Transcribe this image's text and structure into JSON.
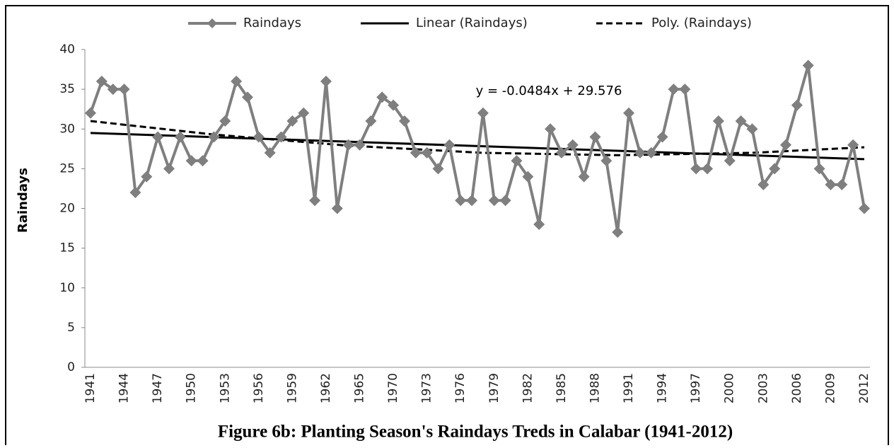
{
  "chart_data": {
    "type": "line",
    "title": "Figure 6b: Planting Season's Raindays Treds in Calabar (1941-2012)",
    "y_label": "Raindays",
    "categories": [
      "1941",
      null,
      null,
      "1944",
      null,
      null,
      "1947",
      null,
      null,
      "1950",
      null,
      null,
      "1953",
      null,
      null,
      "1956",
      null,
      null,
      "1959",
      null,
      null,
      "1962",
      null,
      null,
      "1965",
      null,
      null,
      "1970",
      null,
      null,
      "1973",
      null,
      null,
      "1976",
      null,
      null,
      "1979",
      null,
      null,
      "1982",
      null,
      null,
      "1985",
      null,
      null,
      "1988",
      null,
      null,
      "1991",
      null,
      null,
      "1994",
      null,
      null,
      "1997",
      null,
      null,
      "2000",
      null,
      null,
      "2003",
      null,
      null,
      "2006",
      null,
      null,
      "2009",
      null,
      null,
      "2012"
    ],
    "series": [
      {
        "name": "Raindays",
        "color": "#7f7f7f",
        "marker": "diamond",
        "values": [
          32,
          36,
          35,
          35,
          22,
          24,
          29,
          25,
          29,
          26,
          26,
          29,
          31,
          36,
          34,
          29,
          27,
          29,
          31,
          32,
          21,
          36,
          20,
          28,
          28,
          31,
          34,
          33,
          31,
          27,
          27,
          25,
          28,
          21,
          21,
          32,
          21,
          21,
          26,
          24,
          18,
          30,
          27,
          28,
          24,
          29,
          26,
          17,
          32,
          27,
          27,
          29,
          35,
          35,
          25,
          25,
          31,
          26,
          31,
          30,
          23,
          25,
          28,
          33,
          38,
          25,
          23,
          23,
          28,
          20
        ]
      }
    ],
    "trend_lines": [
      {
        "name": "Linear (Raindays)",
        "color": "#000000",
        "dash": false,
        "x": [
          1,
          70
        ],
        "values": [
          29.5,
          26.2
        ]
      },
      {
        "name": "Poly. (Raindays)",
        "color": "#000000",
        "dash": true,
        "x": [
          1,
          12,
          24,
          36,
          48,
          60,
          70
        ],
        "values": [
          31,
          29.3,
          27.9,
          27.0,
          26.7,
          27.0,
          27.7
        ]
      }
    ],
    "annotation": "y = -0.0484x + 29.576",
    "ylim": [
      0,
      40
    ],
    "yticks": [
      0,
      5,
      10,
      15,
      20,
      25,
      30,
      35,
      40
    ],
    "grid": false,
    "legend": "top"
  }
}
